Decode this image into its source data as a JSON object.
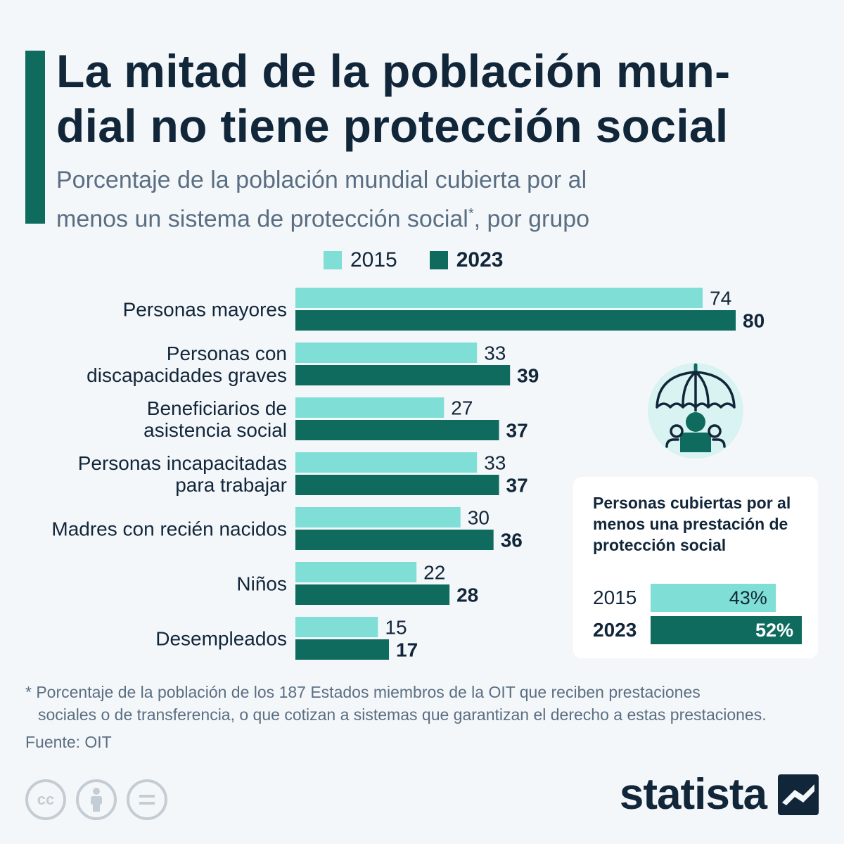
{
  "title": "La mitad de la población mun-dial no tiene protección social",
  "title_line1": "La mitad de la población mun-",
  "title_line2": "dial no tiene protección social",
  "subtitle_line1": "Porcentaje de la población mundial cubierta por al",
  "subtitle_line2": "menos un sistema de protección social",
  "subtitle_sup": "*",
  "subtitle_tail": ", por grupo",
  "colors": {
    "accent": "#0e6b5e",
    "series_2015": "#7fded6",
    "series_2023": "#0e6b5e",
    "text": "#12263a",
    "muted": "#5a6e82"
  },
  "chart_data": {
    "type": "bar",
    "orientation": "horizontal",
    "categories": [
      [
        "Personas mayores"
      ],
      [
        "Personas con",
        "discapacidades graves"
      ],
      [
        "Beneficiarios de",
        "asistencia social"
      ],
      [
        "Personas incapacitadas",
        "para trabajar"
      ],
      [
        "Madres con recién nacidos"
      ],
      [
        "Niños"
      ],
      [
        "Desempleados"
      ]
    ],
    "series": [
      {
        "name": "2015",
        "values": [
          74,
          33,
          27,
          33,
          30,
          22,
          15
        ]
      },
      {
        "name": "2023",
        "values": [
          80,
          39,
          37,
          37,
          36,
          28,
          17
        ]
      }
    ],
    "xlim": [
      0,
      80
    ],
    "grid": false,
    "legend": "top"
  },
  "legend": {
    "label_2015": "2015",
    "label_2023": "2023"
  },
  "summary": {
    "title": "Personas cubiertas por al menos una prestación de protección social",
    "rows": [
      {
        "year": "2015",
        "label": "43%",
        "value": 43
      },
      {
        "year": "2023",
        "label": "52%",
        "value": 52
      }
    ]
  },
  "footnote_line1": "* Porcentaje de la población de los 187 Estados miembros de la OIT que reciben prestaciones",
  "footnote_line2": "sociales o de transferencia, o que cotizan a sistemas que garantizan el derecho a estas prestaciones.",
  "source": "Fuente: OIT",
  "brand": "statista",
  "icons": {
    "illustration": "umbrella-people-icon",
    "cc": "creative-commons-icon",
    "by": "attribution-icon",
    "nd": "no-derivatives-icon",
    "logo": "statista-logo-icon"
  }
}
